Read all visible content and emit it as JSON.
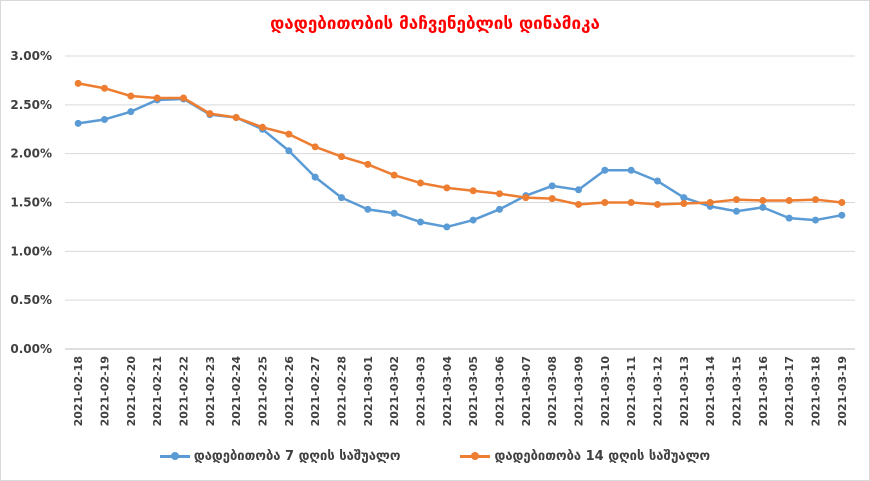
{
  "chart_data": {
    "type": "line",
    "title": "დადებითობის მაჩვენებლის დინამიკა",
    "xlabel": "",
    "ylabel": "",
    "ylim": [
      0,
      0.03
    ],
    "yticks": [
      "0.00%",
      "0.50%",
      "1.00%",
      "1.50%",
      "2.00%",
      "2.50%",
      "3.00%"
    ],
    "grid": true,
    "legend_position": "bottom",
    "categories": [
      "2021-02-18",
      "2021-02-19",
      "2021-02-20",
      "2021-02-21",
      "2021-02-22",
      "2021-02-23",
      "2021-02-24",
      "2021-02-25",
      "2021-02-26",
      "2021-02-27",
      "2021-02-28",
      "2021-03-01",
      "2021-03-02",
      "2021-03-03",
      "2021-03-04",
      "2021-03-05",
      "2021-03-06",
      "2021-03-07",
      "2021-03-08",
      "2021-03-09",
      "2021-03-10",
      "2021-03-11",
      "2021-03-12",
      "2021-03-13",
      "2021-03-14",
      "2021-03-15",
      "2021-03-16",
      "2021-03-17",
      "2021-03-18",
      "2021-03-19"
    ],
    "series": [
      {
        "name": "დადებითობა 7 დღის საშუალო",
        "color": "#5b9bd5",
        "values": [
          0.0231,
          0.0235,
          0.0243,
          0.0255,
          0.0256,
          0.024,
          0.0237,
          0.0225,
          0.0203,
          0.0176,
          0.0155,
          0.0143,
          0.0139,
          0.013,
          0.0125,
          0.0132,
          0.0143,
          0.0157,
          0.0167,
          0.0163,
          0.0183,
          0.0183,
          0.0172,
          0.0155,
          0.0146,
          0.0141,
          0.0145,
          0.0134,
          0.0132,
          0.0137
        ]
      },
      {
        "name": "დადებითობა 14 დღის საშუალო",
        "color": "#ed7d31",
        "values": [
          0.0272,
          0.0267,
          0.0259,
          0.0257,
          0.0257,
          0.0241,
          0.0237,
          0.0227,
          0.022,
          0.0207,
          0.0197,
          0.0189,
          0.0178,
          0.017,
          0.0165,
          0.0162,
          0.0159,
          0.0155,
          0.0154,
          0.0148,
          0.015,
          0.015,
          0.0148,
          0.0149,
          0.015,
          0.0153,
          0.0152,
          0.0152,
          0.0153,
          0.015
        ]
      }
    ]
  },
  "colors": {
    "title": "#ff0000",
    "grid": "#d9d9d9"
  }
}
